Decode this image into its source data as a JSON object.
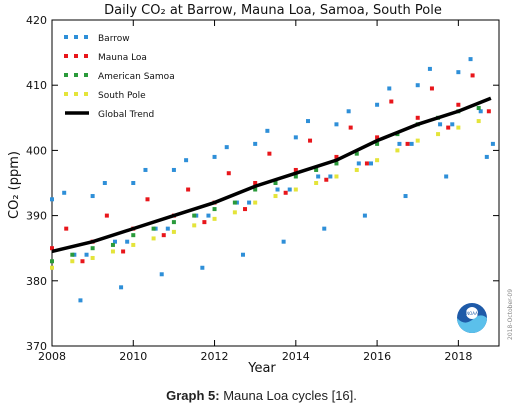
{
  "chart_data": {
    "type": "scatter",
    "title": "Daily CO₂ at Barrow, Mauna Loa, Samoa, South Pole",
    "xlabel": "Year",
    "ylabel": "CO₂ (ppm)",
    "xlim": [
      2008,
      2019
    ],
    "ylim": [
      370,
      420
    ],
    "xticks": [
      2008,
      2010,
      2012,
      2014,
      2016,
      2018
    ],
    "yticks": [
      370,
      380,
      390,
      400,
      410,
      420
    ],
    "grid": false,
    "legend_position": "top-left",
    "watermark": "2018-October-09",
    "series": [
      {
        "name": "Barrow",
        "color": "#2e8fd8",
        "marker": "dot",
        "points": [
          [
            2008.0,
            392.5
          ],
          [
            2008.3,
            393.5
          ],
          [
            2008.55,
            384
          ],
          [
            2008.7,
            377
          ],
          [
            2008.85,
            384
          ],
          [
            2009.0,
            393
          ],
          [
            2009.3,
            395
          ],
          [
            2009.55,
            386
          ],
          [
            2009.7,
            379
          ],
          [
            2009.85,
            386
          ],
          [
            2010.0,
            395
          ],
          [
            2010.3,
            397
          ],
          [
            2010.55,
            388
          ],
          [
            2010.7,
            381
          ],
          [
            2010.85,
            388
          ],
          [
            2011.0,
            397
          ],
          [
            2011.3,
            398.5
          ],
          [
            2011.55,
            390
          ],
          [
            2011.7,
            382
          ],
          [
            2011.85,
            390
          ],
          [
            2012.0,
            399
          ],
          [
            2012.3,
            400.5
          ],
          [
            2012.55,
            392
          ],
          [
            2012.7,
            384
          ],
          [
            2012.85,
            392
          ],
          [
            2013.0,
            401
          ],
          [
            2013.3,
            403
          ],
          [
            2013.55,
            394
          ],
          [
            2013.7,
            386
          ],
          [
            2013.85,
            394
          ],
          [
            2014.0,
            402
          ],
          [
            2014.3,
            404.5
          ],
          [
            2014.55,
            396
          ],
          [
            2014.7,
            388
          ],
          [
            2014.85,
            396
          ],
          [
            2015.0,
            404
          ],
          [
            2015.3,
            406
          ],
          [
            2015.55,
            398
          ],
          [
            2015.7,
            390
          ],
          [
            2015.85,
            398
          ],
          [
            2016.0,
            407
          ],
          [
            2016.3,
            409.5
          ],
          [
            2016.55,
            401
          ],
          [
            2016.7,
            393
          ],
          [
            2016.85,
            401
          ],
          [
            2017.0,
            410
          ],
          [
            2017.3,
            412.5
          ],
          [
            2017.55,
            404
          ],
          [
            2017.7,
            396
          ],
          [
            2017.85,
            404
          ],
          [
            2018.0,
            412
          ],
          [
            2018.3,
            414
          ],
          [
            2018.55,
            406
          ],
          [
            2018.7,
            399
          ],
          [
            2018.85,
            401
          ]
        ]
      },
      {
        "name": "Mauna Loa",
        "color": "#e8161b",
        "marker": "dot",
        "points": [
          [
            2008.0,
            385
          ],
          [
            2008.35,
            388
          ],
          [
            2008.75,
            383
          ],
          [
            2009.0,
            386
          ],
          [
            2009.35,
            390
          ],
          [
            2009.75,
            384.5
          ],
          [
            2010.0,
            388
          ],
          [
            2010.35,
            392.5
          ],
          [
            2010.75,
            387
          ],
          [
            2011.0,
            390
          ],
          [
            2011.35,
            394
          ],
          [
            2011.75,
            389
          ],
          [
            2012.0,
            392
          ],
          [
            2012.35,
            396.5
          ],
          [
            2012.75,
            391
          ],
          [
            2013.0,
            395
          ],
          [
            2013.35,
            399.5
          ],
          [
            2013.75,
            393.5
          ],
          [
            2014.0,
            397
          ],
          [
            2014.35,
            401.5
          ],
          [
            2014.75,
            395.5
          ],
          [
            2015.0,
            399
          ],
          [
            2015.35,
            403.5
          ],
          [
            2015.75,
            398
          ],
          [
            2016.0,
            402
          ],
          [
            2016.35,
            407.5
          ],
          [
            2016.75,
            401
          ],
          [
            2017.0,
            405
          ],
          [
            2017.35,
            409.5
          ],
          [
            2017.75,
            403.5
          ],
          [
            2018.0,
            407
          ],
          [
            2018.35,
            411.5
          ],
          [
            2018.75,
            406
          ]
        ]
      },
      {
        "name": "American Samoa",
        "color": "#2a9a3a",
        "marker": "dot",
        "points": [
          [
            2008.0,
            383
          ],
          [
            2008.5,
            384
          ],
          [
            2009.0,
            385
          ],
          [
            2009.5,
            385.5
          ],
          [
            2010.0,
            387
          ],
          [
            2010.5,
            388
          ],
          [
            2011.0,
            389
          ],
          [
            2011.5,
            390
          ],
          [
            2012.0,
            391
          ],
          [
            2012.5,
            392
          ],
          [
            2013.0,
            394
          ],
          [
            2013.5,
            395
          ],
          [
            2014.0,
            396
          ],
          [
            2014.5,
            397
          ],
          [
            2015.0,
            398
          ],
          [
            2015.5,
            399.5
          ],
          [
            2016.0,
            401
          ],
          [
            2016.5,
            402.5
          ],
          [
            2017.0,
            404
          ],
          [
            2017.5,
            405
          ],
          [
            2018.0,
            406
          ],
          [
            2018.5,
            406.5
          ]
        ]
      },
      {
        "name": "South Pole",
        "color": "#e4e43a",
        "marker": "dot",
        "points": [
          [
            2008.0,
            382
          ],
          [
            2008.5,
            383
          ],
          [
            2009.0,
            383.5
          ],
          [
            2009.5,
            384.5
          ],
          [
            2010.0,
            385.5
          ],
          [
            2010.5,
            386.5
          ],
          [
            2011.0,
            387.5
          ],
          [
            2011.5,
            388.5
          ],
          [
            2012.0,
            389.5
          ],
          [
            2012.5,
            390.5
          ],
          [
            2013.0,
            392
          ],
          [
            2013.5,
            393
          ],
          [
            2014.0,
            394
          ],
          [
            2014.5,
            395
          ],
          [
            2015.0,
            396
          ],
          [
            2015.5,
            397
          ],
          [
            2016.0,
            398.5
          ],
          [
            2016.5,
            400
          ],
          [
            2017.0,
            401.5
          ],
          [
            2017.5,
            402.5
          ],
          [
            2018.0,
            403.5
          ],
          [
            2018.5,
            404.5
          ]
        ]
      },
      {
        "name": "Global Trend",
        "color": "#000000",
        "marker": "line",
        "points": [
          [
            2008.0,
            384.5
          ],
          [
            2009.0,
            386
          ],
          [
            2010.0,
            388
          ],
          [
            2011.0,
            390
          ],
          [
            2012.0,
            392
          ],
          [
            2013.0,
            394.5
          ],
          [
            2014.0,
            396.5
          ],
          [
            2015.0,
            398.5
          ],
          [
            2016.0,
            401.5
          ],
          [
            2017.0,
            404
          ],
          [
            2018.0,
            406
          ],
          [
            2018.8,
            408
          ]
        ]
      }
    ]
  },
  "caption": {
    "label": "Graph 5:",
    "text": " Mauna Loa cycles [16]."
  }
}
